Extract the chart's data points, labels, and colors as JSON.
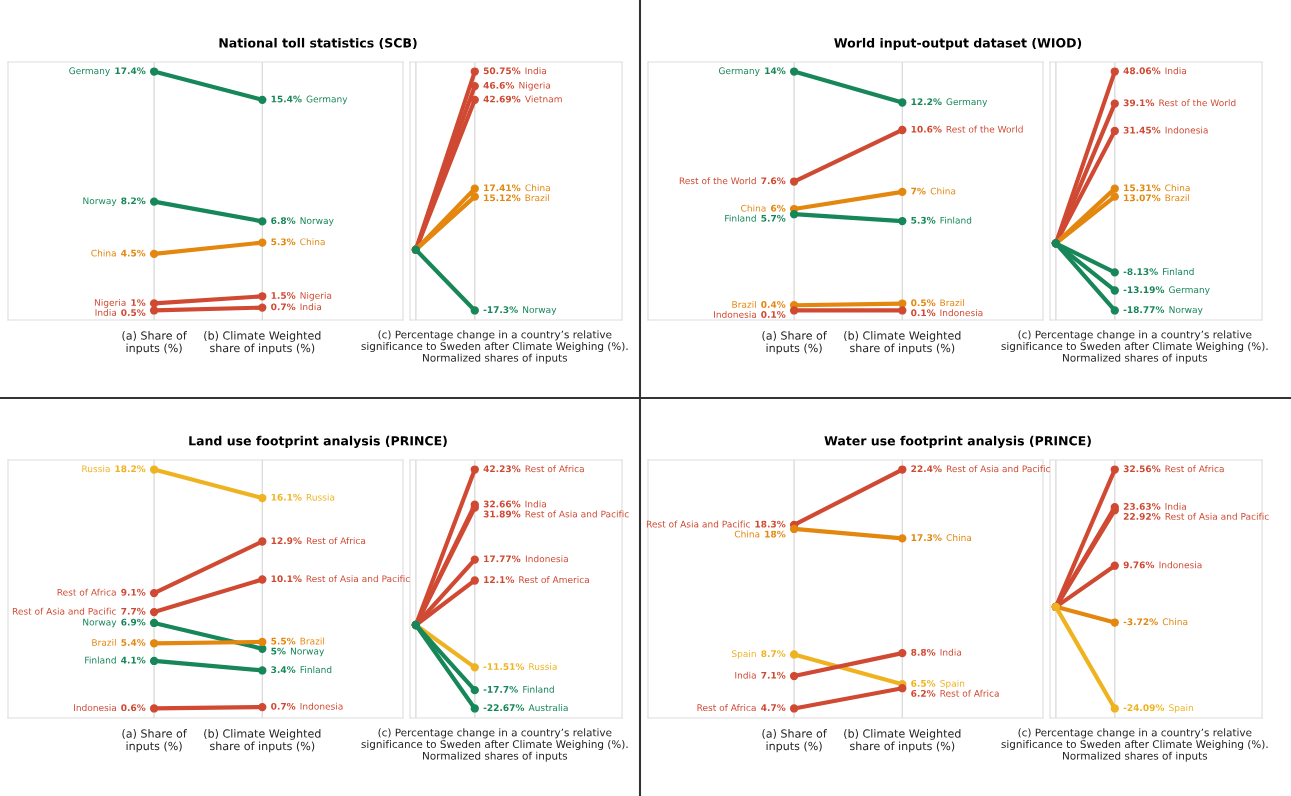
{
  "chart_data": [
    {
      "type": "line",
      "title": "National toll statistics (SCB)",
      "categories": [
        "(a) Share of\ninputs (%)",
        "(b) Climate Weighted\nshare of inputs (%)"
      ],
      "tick_labels": "x",
      "grid": "x",
      "marker": "circle",
      "series": [
        {
          "name": "Germany",
          "color": "#17875a",
          "values": [
            17.4,
            15.4
          ],
          "value_labels": [
            "17.4%",
            "15.4%"
          ]
        },
        {
          "name": "Norway",
          "color": "#17875a",
          "values": [
            8.2,
            6.8
          ],
          "value_labels": [
            "8.2%",
            "6.8%"
          ]
        },
        {
          "name": "China",
          "color": "#e3870f",
          "values": [
            4.5,
            5.3
          ],
          "value_labels": [
            "4.5%",
            "5.3%"
          ]
        },
        {
          "name": "Nigeria",
          "color": "#d04a33",
          "values": [
            1,
            1.5
          ],
          "value_labels": [
            "1%",
            "1.5%"
          ]
        },
        {
          "name": "India",
          "color": "#d04a33",
          "values": [
            0.5,
            0.7
          ],
          "value_labels": [
            "0.5%",
            "0.7%"
          ]
        }
      ]
    },
    {
      "type": "line",
      "categories": [
        null,
        null
      ],
      "xlabel": "(c) Percentage change in a country’s relative\nsignificance to Sweden after Climate Weighing (%).\nNormalized shares of inputs",
      "tick_labels": false,
      "grid": "x",
      "marker": "circle",
      "series": [
        {
          "name": "India",
          "color": "#d04a33",
          "values": [
            0,
            50.75
          ],
          "value_labels": [
            null,
            "50.75%"
          ]
        },
        {
          "name": "Nigeria",
          "color": "#d04a33",
          "values": [
            0,
            46.6
          ],
          "value_labels": [
            null,
            "46.6%"
          ]
        },
        {
          "name": "Vietnam",
          "color": "#d04a33",
          "values": [
            0,
            42.69
          ],
          "value_labels": [
            null,
            "42.69%"
          ]
        },
        {
          "name": "China",
          "color": "#e3870f",
          "values": [
            0,
            17.41
          ],
          "value_labels": [
            null,
            "17.41%"
          ]
        },
        {
          "name": "Brazil",
          "color": "#e3870f",
          "values": [
            0,
            15.12
          ],
          "value_labels": [
            null,
            "15.12%"
          ]
        },
        {
          "name": "Norway",
          "color": "#17875a",
          "values": [
            0,
            -17.3
          ],
          "value_labels": [
            null,
            "-17.3%"
          ]
        }
      ]
    },
    {
      "type": "line",
      "title": "World input-output dataset (WIOD)",
      "categories": [
        "(a) Share of\ninputs (%)",
        "(b) Climate Weighted\nshare of inputs (%)"
      ],
      "tick_labels": "x",
      "grid": "x",
      "marker": "circle",
      "series": [
        {
          "name": "Germany",
          "color": "#17875a",
          "values": [
            14,
            12.2
          ],
          "value_labels": [
            "14%",
            "12.2%"
          ]
        },
        {
          "name": "Rest of the World",
          "color": "#d04a33",
          "values": [
            7.6,
            10.6
          ],
          "value_labels": [
            "7.6%",
            "10.6%"
          ]
        },
        {
          "name": "China",
          "color": "#e3870f",
          "values": [
            6,
            7
          ],
          "value_labels": [
            "6%",
            "7%"
          ]
        },
        {
          "name": "Finland",
          "color": "#17875a",
          "values": [
            5.7,
            5.3
          ],
          "value_labels": [
            "5.7%",
            "5.3%"
          ]
        },
        {
          "name": "Brazil",
          "color": "#e3870f",
          "values": [
            0.4,
            0.5
          ],
          "value_labels": [
            "0.4%",
            "0.5%"
          ]
        },
        {
          "name": "Indonesia",
          "color": "#d04a33",
          "values": [
            0.1,
            0.1
          ],
          "value_labels": [
            "0.1%",
            "0.1%"
          ]
        }
      ]
    },
    {
      "type": "line",
      "categories": [
        null,
        null
      ],
      "xlabel": "(c) Percentage change in a country’s relative\nsignificance to Sweden after Climate Weighing (%).\nNormalized shares of inputs",
      "tick_labels": false,
      "grid": "x",
      "marker": "circle",
      "series": [
        {
          "name": "India",
          "color": "#d04a33",
          "values": [
            0,
            48.06
          ],
          "value_labels": [
            null,
            "48.06%"
          ]
        },
        {
          "name": "Rest of the World",
          "color": "#d04a33",
          "values": [
            0,
            39.1
          ],
          "value_labels": [
            null,
            "39.1%"
          ]
        },
        {
          "name": "Indonesia",
          "color": "#d04a33",
          "values": [
            0,
            31.45
          ],
          "value_labels": [
            null,
            "31.45%"
          ]
        },
        {
          "name": "China",
          "color": "#e3870f",
          "values": [
            0,
            15.31
          ],
          "value_labels": [
            null,
            "15.31%"
          ]
        },
        {
          "name": "Brazil",
          "color": "#e3870f",
          "values": [
            0,
            13.07
          ],
          "value_labels": [
            null,
            "13.07%"
          ]
        },
        {
          "name": "Finland",
          "color": "#17875a",
          "values": [
            0,
            -8.13
          ],
          "value_labels": [
            null,
            "-8.13%"
          ]
        },
        {
          "name": "Germany",
          "color": "#17875a",
          "values": [
            0,
            -13.19
          ],
          "value_labels": [
            null,
            "-13.19%"
          ]
        },
        {
          "name": "Norway",
          "color": "#17875a",
          "values": [
            0,
            -18.77
          ],
          "value_labels": [
            null,
            "-18.77%"
          ]
        }
      ]
    },
    {
      "type": "line",
      "title": "Land use footprint analysis (PRINCE)",
      "categories": [
        "(a) Share of\ninputs (%)",
        "(b) Climate Weighted\nshare of inputs (%)"
      ],
      "tick_labels": "x",
      "grid": "x",
      "marker": "circle",
      "series": [
        {
          "name": "Russia",
          "color": "#efb322",
          "values": [
            18.2,
            16.1
          ],
          "value_labels": [
            "18.2%",
            "16.1%"
          ]
        },
        {
          "name": "Rest of Africa",
          "color": "#d04a33",
          "values": [
            9.1,
            12.9
          ],
          "value_labels": [
            "9.1%",
            "12.9%"
          ]
        },
        {
          "name": "Rest of Asia and Pacific",
          "color": "#d04a33",
          "values": [
            7.7,
            10.1
          ],
          "value_labels": [
            "7.7%",
            "10.1%"
          ]
        },
        {
          "name": "Norway",
          "color": "#17875a",
          "values": [
            6.9,
            5
          ],
          "value_labels": [
            "6.9%",
            "5%"
          ]
        },
        {
          "name": "Brazil",
          "color": "#e3870f",
          "values": [
            5.4,
            5.5
          ],
          "value_labels": [
            "5.4%",
            "5.5%"
          ]
        },
        {
          "name": "Finland",
          "color": "#17875a",
          "values": [
            4.1,
            3.4
          ],
          "value_labels": [
            "4.1%",
            "3.4%"
          ]
        },
        {
          "name": "Indonesia",
          "color": "#d04a33",
          "values": [
            0.6,
            0.7
          ],
          "value_labels": [
            "0.6%",
            "0.7%"
          ]
        }
      ]
    },
    {
      "type": "line",
      "categories": [
        null,
        null
      ],
      "xlabel": "(c) Percentage change in a country’s relative\nsignificance to Sweden after Climate Weighing (%).\nNormalized shares of inputs",
      "tick_labels": false,
      "grid": "x",
      "marker": "circle",
      "series": [
        {
          "name": "Rest of Africa",
          "color": "#d04a33",
          "values": [
            0,
            42.23
          ],
          "value_labels": [
            null,
            "42.23%"
          ]
        },
        {
          "name": "India",
          "color": "#d04a33",
          "values": [
            0,
            32.66
          ],
          "value_labels": [
            null,
            "32.66%"
          ]
        },
        {
          "name": "Rest of Asia and Pacific",
          "color": "#d04a33",
          "values": [
            0,
            31.89
          ],
          "value_labels": [
            null,
            "31.89%"
          ]
        },
        {
          "name": "Indonesia",
          "color": "#d04a33",
          "values": [
            0,
            17.77
          ],
          "value_labels": [
            null,
            "17.77%"
          ]
        },
        {
          "name": "Rest of America",
          "color": "#d04a33",
          "values": [
            0,
            12.1
          ],
          "value_labels": [
            null,
            "12.1%"
          ]
        },
        {
          "name": "Russia",
          "color": "#efb322",
          "values": [
            0,
            -11.51
          ],
          "value_labels": [
            null,
            "-11.51%"
          ]
        },
        {
          "name": "Finland",
          "color": "#17875a",
          "values": [
            0,
            -17.7
          ],
          "value_labels": [
            null,
            "-17.7%"
          ]
        },
        {
          "name": "Australia",
          "color": "#17875a",
          "values": [
            0,
            -22.67
          ],
          "value_labels": [
            null,
            "-22.67%"
          ]
        }
      ]
    },
    {
      "type": "line",
      "title": "Water use footprint analysis (PRINCE)",
      "categories": [
        "(a) Share of\ninputs (%)",
        "(b) Climate Weighted\nshare of inputs (%)"
      ],
      "tick_labels": "x",
      "grid": "x",
      "marker": "circle",
      "series": [
        {
          "name": "Rest of Asia and Pacific",
          "color": "#d04a33",
          "values": [
            18.3,
            22.4
          ],
          "value_labels": [
            "18.3%",
            "22.4%"
          ]
        },
        {
          "name": "China",
          "color": "#e3870f",
          "values": [
            18,
            17.3
          ],
          "value_labels": [
            "18%",
            "17.3%"
          ]
        },
        {
          "name": "Spain",
          "color": "#efb322",
          "values": [
            8.7,
            6.5
          ],
          "value_labels": [
            "8.7%",
            "6.5%"
          ]
        },
        {
          "name": "India",
          "color": "#d04a33",
          "values": [
            7.1,
            8.8
          ],
          "value_labels": [
            "7.1%",
            "8.8%"
          ]
        },
        {
          "name": "Rest of Africa",
          "color": "#d04a33",
          "values": [
            4.7,
            6.2
          ],
          "value_labels": [
            "4.7%",
            "6.2%"
          ]
        }
      ]
    },
    {
      "type": "line",
      "categories": [
        null,
        null
      ],
      "xlabel": "(c) Percentage change in a country’s relative\nsignificance to Sweden after Climate Weighing (%).\nNormalized shares of inputs",
      "tick_labels": false,
      "grid": "x",
      "marker": "circle",
      "series": [
        {
          "name": "Rest of Africa",
          "color": "#d04a33",
          "values": [
            0,
            32.56
          ],
          "value_labels": [
            null,
            "32.56%"
          ]
        },
        {
          "name": "India",
          "color": "#d04a33",
          "values": [
            0,
            23.63
          ],
          "value_labels": [
            null,
            "23.63%"
          ]
        },
        {
          "name": "Rest of Asia and Pacific",
          "color": "#d04a33",
          "values": [
            0,
            22.92
          ],
          "value_labels": [
            null,
            "22.92%"
          ]
        },
        {
          "name": "Indonesia",
          "color": "#d04a33",
          "values": [
            0,
            9.76
          ],
          "value_labels": [
            null,
            "9.76%"
          ]
        },
        {
          "name": "China",
          "color": "#e3870f",
          "values": [
            0,
            -3.72
          ],
          "value_labels": [
            null,
            "-3.72%"
          ]
        },
        {
          "name": "Spain",
          "color": "#efb322",
          "values": [
            0,
            -24.09
          ],
          "value_labels": [
            null,
            "-24.09%"
          ]
        }
      ]
    }
  ]
}
